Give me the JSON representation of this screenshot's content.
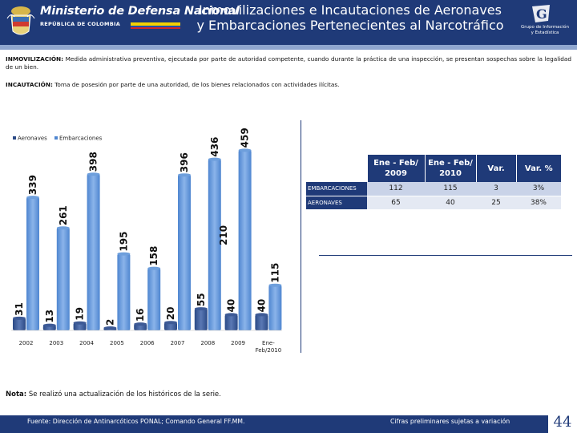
{
  "header": {
    "ministry_title": "Ministerio de Defensa Nacional",
    "ministry_sub": "REPÚBLICA DE COLOMBIA",
    "title_line1": "Inmovilizaciones e Incautaciones de Aeronaves",
    "title_line2": "y Embarcaciones Pertenecientes al Narcotráfico",
    "group_line1": "Grupo de Información",
    "group_line2": "y Estadística"
  },
  "definitions": {
    "inmov_term": "INMOVILIZACIÓN:",
    "inmov_text": "Medida administrativa preventiva, ejecutada por parte de autoridad competente, cuando durante la práctica de una inspección, se presentan sospechas sobre la legalidad de un bien.",
    "incaut_term": "INCAUTACIÓN:",
    "incaut_text": "Toma de posesión por parte de una autoridad, de los bienes relacionados con actividades ilícitas."
  },
  "chart_data": {
    "type": "bar",
    "categories": [
      "2002",
      "2003",
      "2004",
      "2005",
      "2006",
      "2007",
      "2008",
      "2009",
      "Ene-Feb/2010"
    ],
    "category_labels": [
      [
        "2002"
      ],
      [
        "2003"
      ],
      [
        "2004"
      ],
      [
        "2005"
      ],
      [
        "2006"
      ],
      [
        "2007"
      ],
      [
        "2008"
      ],
      [
        "2009"
      ],
      [
        "Ene-",
        "Feb/2010"
      ]
    ],
    "series": [
      {
        "name": "Aeronaves",
        "values": [
          31,
          13,
          19,
          2,
          16,
          20,
          55,
          40,
          40
        ]
      },
      {
        "name": "Embarcaciones",
        "values": [
          339,
          261,
          398,
          195,
          158,
          396,
          436,
          459,
          115
        ]
      }
    ],
    "extra_label": {
      "text": "210",
      "category": "2008"
    },
    "legend_position": "top-left",
    "ylim": [
      0,
      470
    ],
    "grid": false,
    "colors": {
      "aeronaves": "#2b4a86",
      "embarcaciones": "#4f86d0"
    }
  },
  "table": {
    "headers": [
      "Ene - Feb/ 2009",
      "Ene - Feb/ 2010",
      "Var.",
      "Var. %"
    ],
    "rows": [
      {
        "label": "EMBARCACIONES",
        "values": [
          "112",
          "115",
          "3",
          "3%"
        ]
      },
      {
        "label": "AERONAVES",
        "values": [
          "65",
          "40",
          "25",
          "38%"
        ]
      }
    ]
  },
  "note": {
    "label": "Nota:",
    "text": "Se realizó una actualización de los históricos de la serie."
  },
  "footer": {
    "source": "Fuente: Dirección de Antinarcóticos PONAL; Comando General FF.MM.",
    "preliminary": "Cifras preliminares sujetas a variación",
    "page": "44"
  },
  "colors": {
    "brand_blue": "#1f3a78"
  }
}
